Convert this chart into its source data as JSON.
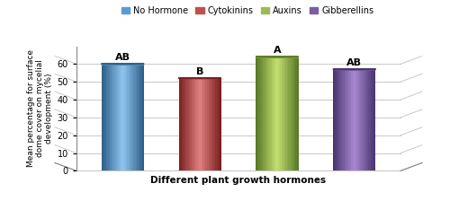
{
  "categories": [
    "No Hormone",
    "Cytokinins",
    "Auxins",
    "Gibberellins"
  ],
  "values": [
    60,
    52,
    64,
    57
  ],
  "labels": [
    "AB",
    "B",
    "A",
    "AB"
  ],
  "bar_colors": [
    "#5B9BD5",
    "#C0504D",
    "#9BBB59",
    "#7B5EA7"
  ],
  "bar_colors_dark": [
    "#2E5F8A",
    "#7B2020",
    "#5A7A28",
    "#4A3570"
  ],
  "bar_colors_light": [
    "#8EC6F0",
    "#E08080",
    "#C5E070",
    "#A888D0"
  ],
  "xlabel": "Different plant growth hormones",
  "ylabel": "Mean percentage for surface\ndome cover on mycelial\ndevelopment (%)",
  "ylim": [
    0,
    70
  ],
  "yticks": [
    0,
    10,
    20,
    30,
    40,
    50,
    60
  ],
  "legend_labels": [
    "No Hormone",
    "Cytokinins",
    "Auxins",
    "Gibberellins"
  ],
  "legend_colors": [
    "#5B9BD5",
    "#C0504D",
    "#9BBB59",
    "#7B5EA7"
  ],
  "background_color": "#FFFFFF",
  "grid_color": "#C8C8C8",
  "xlabel_fontsize": 7.5,
  "ylabel_fontsize": 6.5,
  "legend_fontsize": 7,
  "label_fontsize": 8,
  "tick_fontsize": 7,
  "bar_width": 0.55,
  "cylinder_aspect": 0.09
}
